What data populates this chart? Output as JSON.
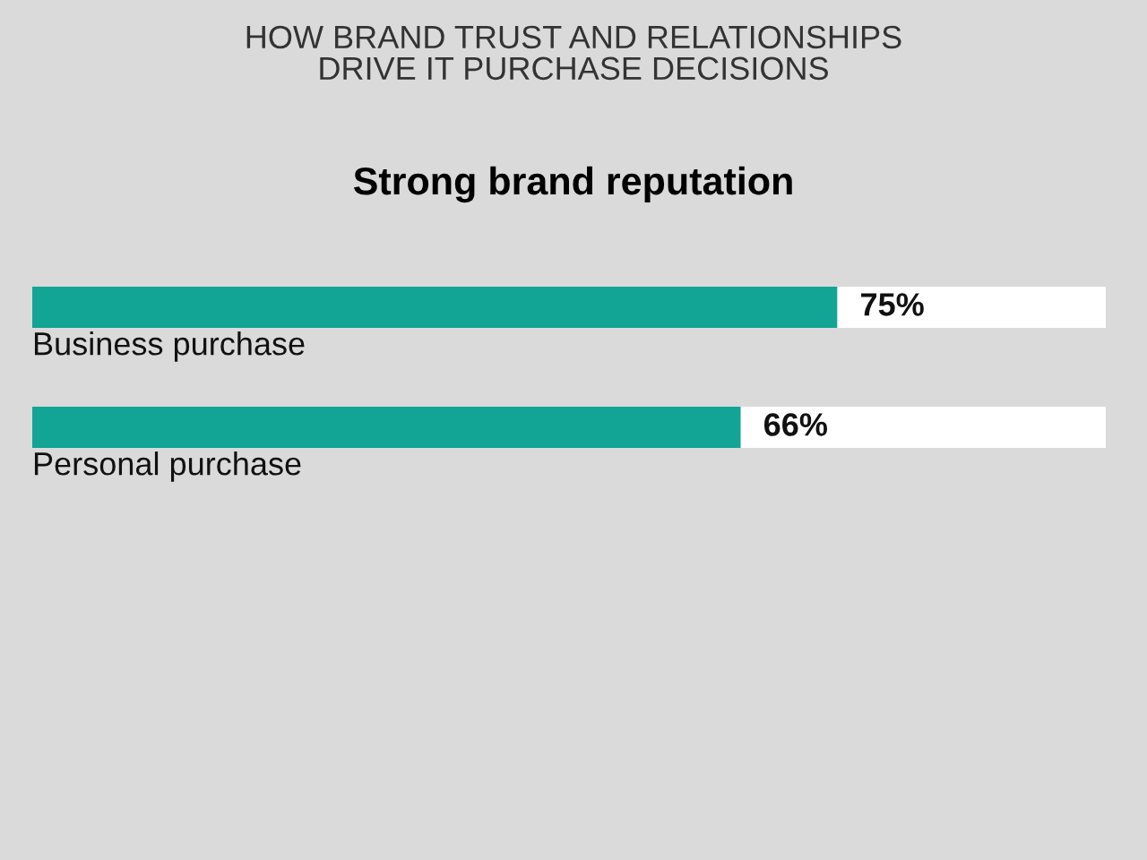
{
  "chart_data": {
    "type": "bar",
    "orientation": "horizontal",
    "stacked": true,
    "title": "HOW BRAND TRUST AND RELATIONSHIPS\nDRIVE IT PURCHASE DECISIONS",
    "subtitle": "Strong brand reputation",
    "categories": [
      "Business purchase",
      "Personal purchase"
    ],
    "series": [
      {
        "color": "#12a595",
        "values": [
          75,
          66
        ],
        "value_labels": [
          "75%",
          "66%"
        ]
      },
      {
        "color": "#ffffff",
        "values": [
          25,
          34
        ]
      }
    ],
    "xlim": [
      0,
      100
    ],
    "tick_labels": "y"
  }
}
